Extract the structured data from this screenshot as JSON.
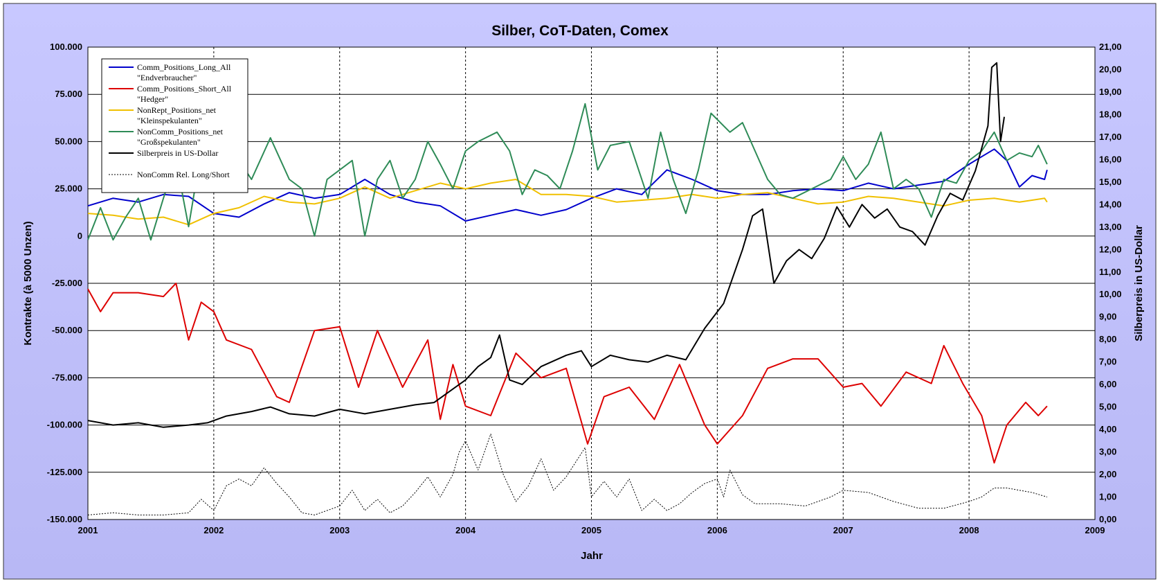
{
  "chart_data": {
    "type": "line",
    "title": "Silber, CoT-Daten, Comex",
    "xlabel": "Jahr",
    "ylabel": "Kontrakte (à 5000 Unzen)",
    "y2label": "Silberpreis in US-Dollar",
    "xlim": [
      2001,
      2009
    ],
    "ylim": [
      -150000,
      100000
    ],
    "y2lim": [
      0,
      21
    ],
    "x_ticks": [
      "2001",
      "2002",
      "2003",
      "2004",
      "2005",
      "2006",
      "2007",
      "2008",
      "2009"
    ],
    "y_ticks": [
      "100.000",
      "75.000",
      "50.000",
      "25.000",
      "0",
      "-25.000",
      "-50.000",
      "-75.000",
      "-100.000",
      "-125.000",
      "-150.000"
    ],
    "y2_ticks": [
      "21,00",
      "20,00",
      "19,00",
      "18,00",
      "17,00",
      "16,00",
      "15,00",
      "14,00",
      "13,00",
      "12,00",
      "11,00",
      "10,00",
      "9,00",
      "8,00",
      "7,00",
      "6,00",
      "5,00",
      "4,00",
      "3,00",
      "2,00",
      "1,00",
      "0,00"
    ],
    "grid": {
      "horizontal": "solid",
      "vertical": "dotted"
    },
    "legend_position": "top-left",
    "legend": [
      {
        "label": "Comm_Positions_Long_All",
        "sublabel": "\"Endverbraucher\"",
        "color": "#0000cc",
        "style": "solid"
      },
      {
        "label": "Comm_Positions_Short_All",
        "sublabel": "\"Hedger\"",
        "color": "#dd0000",
        "style": "solid"
      },
      {
        "label": "NonRept_Positions_net",
        "sublabel": "\"Kleinspekulanten\"",
        "color": "#f0c000",
        "style": "solid"
      },
      {
        "label": "NonComm_Positions_net",
        "sublabel": "\"Großspekulanten\"",
        "color": "#2e8b57",
        "style": "solid"
      },
      {
        "label": "Silberpreis in US-Dollar",
        "sublabel": "",
        "color": "#000000",
        "style": "solid"
      },
      {
        "label": "NonComm Rel. Long/Short",
        "sublabel": "",
        "color": "#000000",
        "style": "dotted"
      }
    ],
    "series": [
      {
        "name": "Comm_Positions_Long_All",
        "axis": "left",
        "color": "#0000cc",
        "width": 2,
        "x": [
          2001,
          2001.2,
          2001.4,
          2001.6,
          2001.8,
          2002,
          2002.2,
          2002.4,
          2002.6,
          2002.8,
          2003,
          2003.2,
          2003.4,
          2003.6,
          2003.8,
          2004,
          2004.2,
          2004.4,
          2004.6,
          2004.8,
          2005,
          2005.2,
          2005.4,
          2005.6,
          2005.8,
          2006,
          2006.2,
          2006.4,
          2006.6,
          2006.8,
          2007,
          2007.2,
          2007.4,
          2007.6,
          2007.8,
          2008,
          2008.1,
          2008.2,
          2008.3,
          2008.4,
          2008.5,
          2008.6,
          2008.62
        ],
        "y": [
          16000,
          20000,
          18000,
          22000,
          21000,
          12000,
          10000,
          17000,
          23000,
          20000,
          22000,
          30000,
          22000,
          18000,
          16000,
          8000,
          11000,
          14000,
          11000,
          14000,
          20000,
          25000,
          22000,
          35000,
          30000,
          24000,
          22000,
          22000,
          24000,
          25000,
          24000,
          28000,
          25000,
          27000,
          29000,
          38000,
          42000,
          46000,
          40000,
          26000,
          32000,
          30000,
          35000
        ]
      },
      {
        "name": "Comm_Positions_Short_All",
        "axis": "left",
        "color": "#dd0000",
        "width": 2,
        "x": [
          2001,
          2001.1,
          2001.2,
          2001.4,
          2001.6,
          2001.7,
          2001.8,
          2001.9,
          2002,
          2002.1,
          2002.3,
          2002.5,
          2002.6,
          2002.8,
          2003,
          2003.15,
          2003.3,
          2003.5,
          2003.7,
          2003.8,
          2003.9,
          2004,
          2004.2,
          2004.4,
          2004.6,
          2004.8,
          2004.97,
          2005.1,
          2005.3,
          2005.5,
          2005.7,
          2005.9,
          2006,
          2006.2,
          2006.4,
          2006.6,
          2006.8,
          2007,
          2007.15,
          2007.3,
          2007.5,
          2007.7,
          2007.8,
          2007.95,
          2008.1,
          2008.2,
          2008.3,
          2008.45,
          2008.55,
          2008.62
        ],
        "y": [
          -28000,
          -40000,
          -30000,
          -30000,
          -32000,
          -25000,
          -55000,
          -35000,
          -40000,
          -55000,
          -60000,
          -85000,
          -88000,
          -50000,
          -48000,
          -80000,
          -50000,
          -80000,
          -55000,
          -97000,
          -68000,
          -90000,
          -95000,
          -62000,
          -75000,
          -70000,
          -110000,
          -85000,
          -80000,
          -97000,
          -68000,
          -100000,
          -110000,
          -95000,
          -70000,
          -65000,
          -65000,
          -80000,
          -78000,
          -90000,
          -72000,
          -78000,
          -58000,
          -78000,
          -95000,
          -120000,
          -100000,
          -88000,
          -95000,
          -90000
        ]
      },
      {
        "name": "NonRept_Positions_net",
        "axis": "left",
        "color": "#f0c000",
        "width": 2,
        "x": [
          2001,
          2001.2,
          2001.4,
          2001.6,
          2001.8,
          2002,
          2002.2,
          2002.4,
          2002.6,
          2002.8,
          2003,
          2003.2,
          2003.4,
          2003.6,
          2003.8,
          2004,
          2004.2,
          2004.4,
          2004.6,
          2004.8,
          2005,
          2005.2,
          2005.4,
          2005.6,
          2005.8,
          2006,
          2006.2,
          2006.4,
          2006.6,
          2006.8,
          2007,
          2007.2,
          2007.4,
          2007.6,
          2007.8,
          2008,
          2008.2,
          2008.4,
          2008.6,
          2008.62
        ],
        "y": [
          12000,
          11000,
          9000,
          10000,
          6000,
          12000,
          15000,
          21000,
          18000,
          17000,
          20000,
          26000,
          20000,
          24000,
          28000,
          25000,
          28000,
          30000,
          22000,
          22000,
          21000,
          18000,
          19000,
          20000,
          22000,
          20000,
          22000,
          23000,
          20000,
          17000,
          18000,
          21000,
          20000,
          18000,
          16000,
          19000,
          20000,
          18000,
          20000,
          18000
        ]
      },
      {
        "name": "NonComm_Positions_net",
        "axis": "left",
        "color": "#2e8b57",
        "width": 2,
        "x": [
          2001,
          2001.1,
          2001.2,
          2001.3,
          2001.4,
          2001.5,
          2001.6,
          2001.7,
          2001.8,
          2001.9,
          2002,
          2002.1,
          2002.2,
          2002.3,
          2002.45,
          2002.6,
          2002.7,
          2002.8,
          2002.9,
          2003,
          2003.1,
          2003.2,
          2003.3,
          2003.4,
          2003.5,
          2003.6,
          2003.7,
          2003.8,
          2003.9,
          2004,
          2004.1,
          2004.25,
          2004.35,
          2004.45,
          2004.55,
          2004.65,
          2004.75,
          2004.85,
          2004.95,
          2005.05,
          2005.15,
          2005.3,
          2005.45,
          2005.55,
          2005.65,
          2005.75,
          2005.85,
          2005.95,
          2006.1,
          2006.2,
          2006.3,
          2006.4,
          2006.5,
          2006.6,
          2006.75,
          2006.9,
          2007,
          2007.1,
          2007.2,
          2007.3,
          2007.4,
          2007.5,
          2007.6,
          2007.7,
          2007.8,
          2007.9,
          2008,
          2008.1,
          2008.2,
          2008.3,
          2008.4,
          2008.5,
          2008.55,
          2008.62
        ],
        "y": [
          -2000,
          15000,
          -2000,
          10000,
          20000,
          -2000,
          20000,
          40000,
          5000,
          45000,
          35000,
          25000,
          40000,
          30000,
          52000,
          30000,
          25000,
          0,
          30000,
          35000,
          40000,
          0,
          30000,
          40000,
          20000,
          30000,
          50000,
          38000,
          25000,
          45000,
          50000,
          55000,
          45000,
          22000,
          35000,
          32000,
          25000,
          45000,
          70000,
          35000,
          48000,
          50000,
          20000,
          55000,
          30000,
          12000,
          35000,
          65000,
          55000,
          60000,
          45000,
          30000,
          22000,
          20000,
          25000,
          30000,
          42000,
          30000,
          38000,
          55000,
          25000,
          30000,
          25000,
          10000,
          30000,
          28000,
          40000,
          45000,
          55000,
          40000,
          44000,
          42000,
          48000,
          38000
        ]
      },
      {
        "name": "Silberpreis in US-Dollar",
        "axis": "right",
        "color": "#000000",
        "width": 2,
        "x": [
          2001,
          2001.2,
          2001.4,
          2001.6,
          2001.8,
          2001.95,
          2002.1,
          2002.3,
          2002.45,
          2002.6,
          2002.8,
          2003,
          2003.2,
          2003.4,
          2003.6,
          2003.75,
          2003.9,
          2004,
          2004.1,
          2004.2,
          2004.27,
          2004.35,
          2004.45,
          2004.6,
          2004.8,
          2004.92,
          2005,
          2005.15,
          2005.3,
          2005.45,
          2005.6,
          2005.75,
          2005.9,
          2006.05,
          2006.2,
          2006.28,
          2006.36,
          2006.45,
          2006.55,
          2006.65,
          2006.75,
          2006.85,
          2006.95,
          2007.05,
          2007.15,
          2007.25,
          2007.35,
          2007.45,
          2007.55,
          2007.65,
          2007.75,
          2007.85,
          2007.95,
          2008.05,
          2008.15,
          2008.18,
          2008.22,
          2008.25,
          2008.28
        ],
        "y": [
          4.4,
          4.2,
          4.3,
          4.1,
          4.2,
          4.3,
          4.6,
          4.8,
          5.0,
          4.7,
          4.6,
          4.9,
          4.7,
          4.9,
          5.1,
          5.2,
          5.8,
          6.2,
          6.8,
          7.2,
          8.2,
          6.2,
          6.0,
          6.8,
          7.3,
          7.5,
          6.8,
          7.3,
          7.1,
          7.0,
          7.3,
          7.1,
          8.5,
          9.6,
          12.0,
          13.5,
          13.8,
          10.5,
          11.5,
          12.0,
          11.6,
          12.5,
          13.9,
          13.0,
          14.0,
          13.4,
          13.8,
          13.0,
          12.8,
          12.2,
          13.5,
          14.5,
          14.2,
          15.5,
          17.5,
          20.1,
          20.3,
          16.8,
          17.9
        ]
      },
      {
        "name": "NonComm Rel. Long/Short",
        "axis": "right",
        "color": "#000000",
        "width": 1,
        "dash": "2,2",
        "x": [
          2001,
          2001.2,
          2001.4,
          2001.6,
          2001.8,
          2001.9,
          2002,
          2002.1,
          2002.2,
          2002.3,
          2002.4,
          2002.5,
          2002.6,
          2002.7,
          2002.8,
          2002.9,
          2003,
          2003.1,
          2003.2,
          2003.3,
          2003.4,
          2003.5,
          2003.6,
          2003.7,
          2003.8,
          2003.9,
          2003.95,
          2004,
          2004.1,
          2004.2,
          2004.3,
          2004.4,
          2004.5,
          2004.6,
          2004.7,
          2004.8,
          2004.95,
          2005,
          2005.1,
          2005.2,
          2005.3,
          2005.4,
          2005.5,
          2005.6,
          2005.7,
          2005.8,
          2005.9,
          2006,
          2006.05,
          2006.1,
          2006.2,
          2006.3,
          2006.5,
          2006.7,
          2006.9,
          2007,
          2007.2,
          2007.4,
          2007.6,
          2007.8,
          2008,
          2008.1,
          2008.2,
          2008.3,
          2008.4,
          2008.5,
          2008.62
        ],
        "y": [
          0.2,
          0.3,
          0.2,
          0.2,
          0.3,
          0.9,
          0.4,
          1.5,
          1.8,
          1.5,
          2.3,
          1.6,
          1.0,
          0.3,
          0.2,
          0.4,
          0.6,
          1.3,
          0.4,
          0.9,
          0.3,
          0.6,
          1.2,
          1.9,
          1.0,
          2.0,
          3.0,
          3.5,
          2.2,
          3.8,
          2.0,
          0.8,
          1.5,
          2.7,
          1.3,
          1.9,
          3.2,
          1.0,
          1.7,
          1.0,
          1.8,
          0.4,
          0.9,
          0.4,
          0.7,
          1.2,
          1.6,
          1.8,
          1.0,
          2.2,
          1.1,
          0.7,
          0.7,
          0.6,
          1.0,
          1.3,
          1.2,
          0.8,
          0.5,
          0.5,
          0.8,
          1.0,
          1.4,
          1.4,
          1.3,
          1.2,
          1.0
        ]
      }
    ]
  }
}
